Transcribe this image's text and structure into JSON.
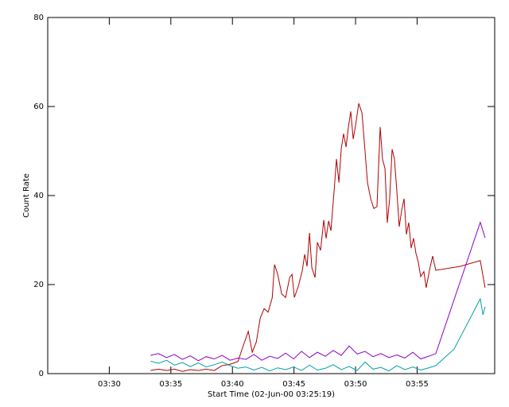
{
  "chart_data": {
    "type": "line",
    "xlabel": "Start Time (02-Jun-00 03:25:19)",
    "ylabel": "Count Rate",
    "xlim": [
      25,
      61.3
    ],
    "ylim": [
      0,
      80
    ],
    "xticks": [
      {
        "value": 30,
        "label": "03:30"
      },
      {
        "value": 35,
        "label": "03:35"
      },
      {
        "value": 40,
        "label": "03:40"
      },
      {
        "value": 45,
        "label": "03:45"
      },
      {
        "value": 50,
        "label": "03:50"
      },
      {
        "value": 55,
        "label": "03:55"
      }
    ],
    "yticks": [
      0,
      20,
      40,
      60,
      80
    ],
    "series": [
      {
        "color": "#b00000",
        "x": [
          33.35,
          34.0,
          34.65,
          35.29,
          35.94,
          36.58,
          37.23,
          37.87,
          38.52,
          39.16,
          39.81,
          40.45,
          40.77,
          41.29,
          41.61,
          41.94,
          42.26,
          42.58,
          42.9,
          43.23,
          43.42,
          43.68,
          44.0,
          44.32,
          44.65,
          44.84,
          45.03,
          45.35,
          45.68,
          45.87,
          46.06,
          46.26,
          46.45,
          46.71,
          46.9,
          47.16,
          47.42,
          47.61,
          47.81,
          48.0,
          48.26,
          48.45,
          48.65,
          48.84,
          49.03,
          49.23,
          49.42,
          49.61,
          49.81,
          50.0,
          50.26,
          50.52,
          50.77,
          50.97,
          51.23,
          51.48,
          51.74,
          52.0,
          52.19,
          52.39,
          52.58,
          52.77,
          52.97,
          53.16,
          53.35,
          53.55,
          53.74,
          53.94,
          54.13,
          54.32,
          54.52,
          54.71,
          54.9,
          55.1,
          55.29,
          55.55,
          55.74,
          56.0,
          56.26,
          56.52,
          58.52,
          60.13,
          60.52
        ],
        "values": [
          0.7,
          1,
          0.7,
          1,
          0.5,
          0.9,
          0.7,
          1,
          0.7,
          1.8,
          2.1,
          2.7,
          5.4,
          9.5,
          4.8,
          7.1,
          12.5,
          14.6,
          13.8,
          17,
          24.5,
          22.3,
          17.9,
          17.1,
          21.6,
          22.3,
          17.1,
          19.6,
          23.2,
          26.8,
          24.1,
          31.6,
          23.8,
          21.6,
          29.5,
          27.7,
          34.5,
          30.4,
          34.3,
          32.1,
          41.1,
          48.2,
          42.9,
          50.5,
          53.9,
          50.9,
          55.4,
          58.9,
          52.7,
          55.7,
          60.7,
          58.6,
          50,
          42.9,
          39.3,
          37.1,
          37.5,
          55.4,
          48.2,
          46.1,
          33.9,
          39.3,
          50.4,
          48.2,
          41.1,
          33,
          36.6,
          39.3,
          31.3,
          33.9,
          28.2,
          30.4,
          27.1,
          25,
          21.8,
          22.9,
          19.3,
          23.2,
          26.4,
          23.2,
          24.1,
          25.4,
          19.3
        ]
      },
      {
        "color": "#8a00c8",
        "x": [
          33.35,
          34.0,
          34.65,
          35.29,
          35.94,
          36.58,
          37.23,
          37.87,
          38.52,
          39.16,
          39.81,
          40.45,
          41.1,
          41.74,
          42.39,
          43.03,
          43.68,
          44.32,
          44.97,
          45.61,
          46.26,
          46.9,
          47.55,
          48.19,
          48.84,
          49.48,
          50.13,
          50.77,
          51.42,
          52.06,
          52.71,
          53.35,
          54.0,
          54.65,
          55.29,
          55.94,
          56.52,
          60.13,
          60.52
        ],
        "values": [
          4.1,
          4.5,
          3.6,
          4.3,
          3.2,
          4.0,
          2.9,
          3.8,
          3.3,
          4.1,
          3.0,
          3.5,
          3.2,
          4.3,
          3.0,
          3.9,
          3.4,
          4.6,
          3.3,
          5.0,
          3.6,
          4.8,
          3.9,
          5.2,
          4.1,
          6.2,
          4.4,
          5.0,
          3.8,
          4.5,
          3.6,
          4.2,
          3.5,
          4.8,
          3.3,
          3.9,
          4.5,
          34,
          30.5
        ]
      },
      {
        "color": "#00a0a0",
        "x": [
          33.35,
          34.0,
          34.65,
          35.29,
          35.94,
          36.58,
          37.23,
          37.87,
          38.52,
          39.16,
          39.81,
          40.45,
          41.1,
          41.74,
          42.39,
          43.03,
          43.68,
          44.32,
          44.97,
          45.61,
          46.26,
          46.9,
          47.55,
          48.19,
          48.84,
          49.48,
          50.13,
          50.77,
          51.42,
          52.06,
          52.71,
          53.35,
          54.0,
          54.65,
          55.29,
          55.94,
          56.52,
          58.0,
          60.13,
          60.35,
          60.52
        ],
        "values": [
          2.8,
          2.3,
          3.0,
          1.9,
          2.5,
          1.6,
          2.4,
          1.5,
          2.0,
          2.6,
          1.8,
          1.2,
          1.5,
          0.8,
          1.4,
          0.6,
          1.3,
          0.9,
          1.5,
          0.7,
          1.9,
          0.8,
          1.2,
          2.0,
          0.9,
          1.6,
          0.7,
          2.6,
          1.0,
          1.4,
          0.6,
          1.8,
          0.9,
          1.5,
          0.8,
          1.3,
          1.8,
          5.5,
          16.8,
          13.2,
          15
        ]
      }
    ]
  }
}
